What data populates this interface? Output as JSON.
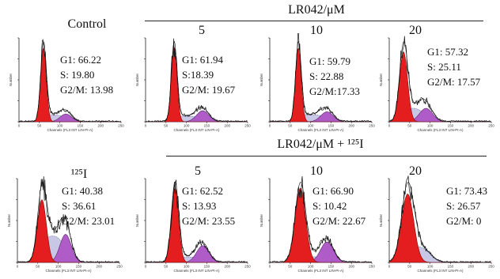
{
  "headers": {
    "top_group": "LR042/μM",
    "bottom_group": "LR042/μM + ¹²⁵I",
    "top_control": "Control",
    "bottom_control": "¹²⁵I",
    "top_doses": [
      "5",
      "10",
      "20"
    ],
    "bottom_doses": [
      "5",
      "10",
      "20"
    ]
  },
  "axis": {
    "xlabel": "Channels (FL3 INT LIN-PI-A)",
    "ylabel": "Number",
    "xticks": [
      "0",
      "50",
      "100",
      "150",
      "200",
      "250"
    ]
  },
  "colors": {
    "g1": "#e41e1e",
    "s": "#c8c8e6",
    "g2m": "#b05cc8",
    "outline": "#111111"
  },
  "chart_data": [
    {
      "type": "area",
      "title": "Control",
      "xlim": [
        0,
        250
      ],
      "phases": {
        "G1": 66.22,
        "S": 19.8,
        "G2M": 13.98
      },
      "labels": [
        "G1: 66.22",
        "S: 19.80",
        "G2/M: 13.98"
      ]
    },
    {
      "type": "area",
      "title": "5",
      "xlim": [
        0,
        250
      ],
      "phases": {
        "G1": 61.94,
        "S": 18.39,
        "G2M": 19.67
      },
      "labels": [
        "G1: 61.94",
        "S:18.39",
        "G2/M: 19.67"
      ]
    },
    {
      "type": "area",
      "title": "10",
      "xlim": [
        0,
        250
      ],
      "phases": {
        "G1": 59.79,
        "S": 22.88,
        "G2M": 17.33
      },
      "labels": [
        "G1: 59.79",
        "S: 22.88",
        "G2/M:17.33"
      ]
    },
    {
      "type": "area",
      "title": "20",
      "xlim": [
        0,
        250
      ],
      "phases": {
        "G1": 57.32,
        "S": 25.11,
        "G2M": 17.57
      },
      "labels": [
        "G1: 57.32",
        "S: 25.11",
        "G2/M: 17.57"
      ]
    },
    {
      "type": "area",
      "title": "¹²⁵I",
      "xlim": [
        0,
        250
      ],
      "phases": {
        "G1": 40.38,
        "S": 36.61,
        "G2M": 23.01
      },
      "labels": [
        "G1: 40.38",
        "S: 36.61",
        "G2/M: 23.01"
      ]
    },
    {
      "type": "area",
      "title": "5",
      "xlim": [
        0,
        250
      ],
      "phases": {
        "G1": 62.52,
        "S": 13.93,
        "G2M": 23.55
      },
      "labels": [
        "G1: 62.52",
        "S: 13.93",
        "G2/M: 23.55"
      ]
    },
    {
      "type": "area",
      "title": "10",
      "xlim": [
        0,
        250
      ],
      "phases": {
        "G1": 66.9,
        "S": 10.42,
        "G2M": 22.67
      },
      "labels": [
        "G1: 66.90",
        "S: 10.42",
        "G2/M: 22.67"
      ]
    },
    {
      "type": "area",
      "title": "20",
      "xlim": [
        0,
        250
      ],
      "phases": {
        "G1": 73.43,
        "S": 26.57,
        "G2M": 0
      },
      "labels": [
        "G1: 73.43",
        "S: 26.57",
        "G2/M: 0"
      ]
    }
  ]
}
